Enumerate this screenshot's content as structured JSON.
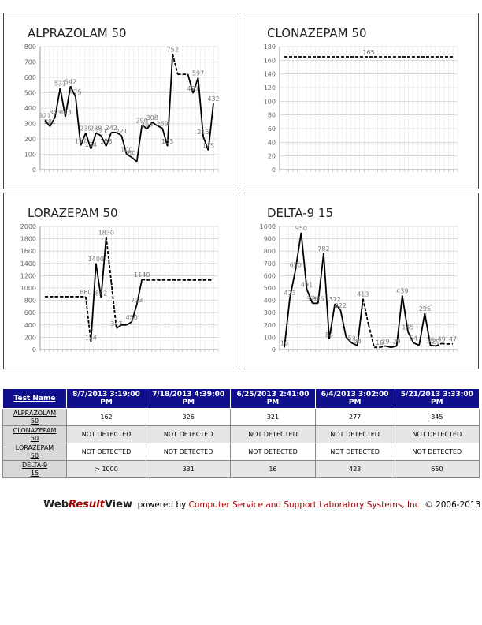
{
  "chart_data": [
    {
      "type": "line",
      "title": "ALPRAZOLAM 50",
      "ylim": [
        0,
        800
      ],
      "yticks": [
        0,
        100,
        200,
        300,
        400,
        500,
        600,
        700,
        800
      ],
      "grid": true,
      "series": [
        {
          "values": [
            321,
            281,
            343,
            531,
            343,
            542,
            475,
            157,
            239,
            134,
            238,
            221,
            153,
            242,
            242,
            221,
            100,
            80,
            52,
            290,
            265,
            308,
            286,
            269,
            153,
            752,
            620,
            620,
            620,
            497,
            597,
            215,
            125,
            432
          ],
          "dashed_segments": [
            [
              25,
              28
            ]
          ],
          "point_labels": [
            {
              "i": 0,
              "label": "321"
            },
            {
              "i": 1,
              "label": "281"
            },
            {
              "i": 2,
              "label": "343"
            },
            {
              "i": 3,
              "label": "531"
            },
            {
              "i": 4,
              "label": "343"
            },
            {
              "i": 5,
              "label": "542"
            },
            {
              "i": 6,
              "label": "475"
            },
            {
              "i": 7,
              "label": "157"
            },
            {
              "i": 8,
              "label": "239"
            },
            {
              "i": 9,
              "label": "134"
            },
            {
              "i": 10,
              "label": "238"
            },
            {
              "i": 11,
              "label": "221"
            },
            {
              "i": 12,
              "label": "153"
            },
            {
              "i": 13,
              "label": "242"
            },
            {
              "i": 15,
              "label": "221"
            },
            {
              "i": 16,
              "label": "100"
            },
            {
              "i": 17,
              "label": "80"
            },
            {
              "i": 19,
              "label": "290"
            },
            {
              "i": 20,
              "label": "265"
            },
            {
              "i": 21,
              "label": "308"
            },
            {
              "i": 23,
              "label": "269"
            },
            {
              "i": 24,
              "label": "153"
            },
            {
              "i": 25,
              "label": "752"
            },
            {
              "i": 29,
              "label": "497"
            },
            {
              "i": 30,
              "label": "597"
            },
            {
              "i": 31,
              "label": "215"
            },
            {
              "i": 32,
              "label": "125"
            },
            {
              "i": 33,
              "label": "432"
            }
          ]
        }
      ]
    },
    {
      "type": "line",
      "title": "CLONAZEPAM 50",
      "ylim": [
        0,
        180
      ],
      "yticks": [
        0,
        20,
        40,
        60,
        80,
        100,
        120,
        140,
        160,
        180
      ],
      "grid": true,
      "series": [
        {
          "values": [
            165,
            165
          ],
          "dashed_segments": [
            [
              0,
              1
            ]
          ],
          "point_labels": [
            {
              "i": 0.5,
              "label": "165"
            }
          ]
        }
      ]
    },
    {
      "type": "line",
      "title": "LORAZEPAM 50",
      "ylim": [
        0,
        2000
      ],
      "yticks": [
        0,
        200,
        400,
        600,
        800,
        1000,
        1200,
        1400,
        1600,
        1800,
        2000
      ],
      "grid": true,
      "series": [
        {
          "values": [
            860,
            860,
            860,
            860,
            860,
            860,
            860,
            860,
            860,
            124,
            1400,
            842,
            1830,
            1100,
            347,
            400,
            400,
            450,
            733,
            1140,
            1130,
            1130,
            1130,
            1130,
            1130,
            1130,
            1130,
            1130,
            1130,
            1130,
            1130,
            1130,
            1130,
            1130
          ],
          "dashed_segments": [
            [
              0,
              9
            ],
            [
              12,
              14
            ],
            [
              19,
              33
            ]
          ],
          "point_labels": [
            {
              "i": 8,
              "label": "860"
            },
            {
              "i": 9,
              "label": "124"
            },
            {
              "i": 10,
              "label": "1400"
            },
            {
              "i": 11,
              "label": "842"
            },
            {
              "i": 12,
              "label": "1830"
            },
            {
              "i": 14,
              "label": "347"
            },
            {
              "i": 17,
              "label": "450"
            },
            {
              "i": 18,
              "label": "733"
            },
            {
              "i": 19,
              "label": "1140"
            }
          ]
        }
      ]
    },
    {
      "type": "line",
      "title": "DELTA-9 15",
      "ylim": [
        0,
        1000
      ],
      "yticks": [
        0,
        100,
        200,
        300,
        400,
        500,
        600,
        700,
        800,
        900,
        1000
      ],
      "grid": true,
      "series": [
        {
          "values": [
            16,
            423,
            650,
            950,
            491,
            376,
            376,
            782,
            84,
            372,
            322,
            100,
            53,
            33,
            413,
            200,
            18,
            18,
            29,
            18,
            29,
            439,
            145,
            54,
            35,
            295,
            35,
            29,
            49,
            45,
            47
          ],
          "dashed_segments": [
            [
              14,
              18
            ],
            [
              27,
              30
            ]
          ],
          "point_labels": [
            {
              "i": 0,
              "label": "16"
            },
            {
              "i": 1,
              "label": "423"
            },
            {
              "i": 2,
              "label": "650"
            },
            {
              "i": 3,
              "label": "950"
            },
            {
              "i": 4,
              "label": "491"
            },
            {
              "i": 5,
              "label": "376"
            },
            {
              "i": 6,
              "label": "376"
            },
            {
              "i": 7,
              "label": "782"
            },
            {
              "i": 8,
              "label": "84"
            },
            {
              "i": 9,
              "label": "372"
            },
            {
              "i": 10,
              "label": "322"
            },
            {
              "i": 12,
              "label": "53"
            },
            {
              "i": 13,
              "label": "33"
            },
            {
              "i": 14,
              "label": "413"
            },
            {
              "i": 17,
              "label": "18"
            },
            {
              "i": 18,
              "label": "29"
            },
            {
              "i": 20,
              "label": "29"
            },
            {
              "i": 21,
              "label": "439"
            },
            {
              "i": 22,
              "label": "145"
            },
            {
              "i": 23,
              "label": "54"
            },
            {
              "i": 25,
              "label": "295"
            },
            {
              "i": 26,
              "label": "35"
            },
            {
              "i": 27,
              "label": "29"
            },
            {
              "i": 28,
              "label": "49"
            },
            {
              "i": 30,
              "label": "47"
            }
          ]
        }
      ]
    }
  ],
  "table": {
    "header_label": "Test Name",
    "dates": [
      "8/7/2013 3:19:00 PM",
      "7/18/2013 4:39:00 PM",
      "6/25/2013 2:41:00 PM",
      "6/4/2013 3:02:00 PM",
      "5/21/2013 3:33:00 PM"
    ],
    "rows": [
      {
        "name_1": "ALPRAZOLAM",
        "name_2": "50",
        "values": [
          "162",
          "326",
          "321",
          "277",
          "345"
        ]
      },
      {
        "name_1": "CLONAZEPAM",
        "name_2": "50",
        "values": [
          "NOT DETECTED",
          "NOT DETECTED",
          "NOT DETECTED",
          "NOT DETECTED",
          "NOT DETECTED"
        ]
      },
      {
        "name_1": "LORAZEPAM",
        "name_2": "50",
        "values": [
          "NOT DETECTED",
          "NOT DETECTED",
          "NOT DETECTED",
          "NOT DETECTED",
          "NOT DETECTED"
        ]
      },
      {
        "name_1": "DELTA-9",
        "name_2": "15",
        "values": [
          "> 1000",
          "331",
          "16",
          "423",
          "650"
        ]
      }
    ]
  },
  "footer": {
    "brand_1": "Web",
    "brand_2": "Result",
    "brand_3": "View",
    "powered_by": "powered by",
    "org": "Computer Service and Support Laboratory Systems, Inc.",
    "copyright": "© 2006-2013"
  },
  "colors": {
    "line": "#000000",
    "grid": "#c8c8c8",
    "label": "#777777",
    "header_bg": "#10108c",
    "brand_accent": "#a00000"
  }
}
